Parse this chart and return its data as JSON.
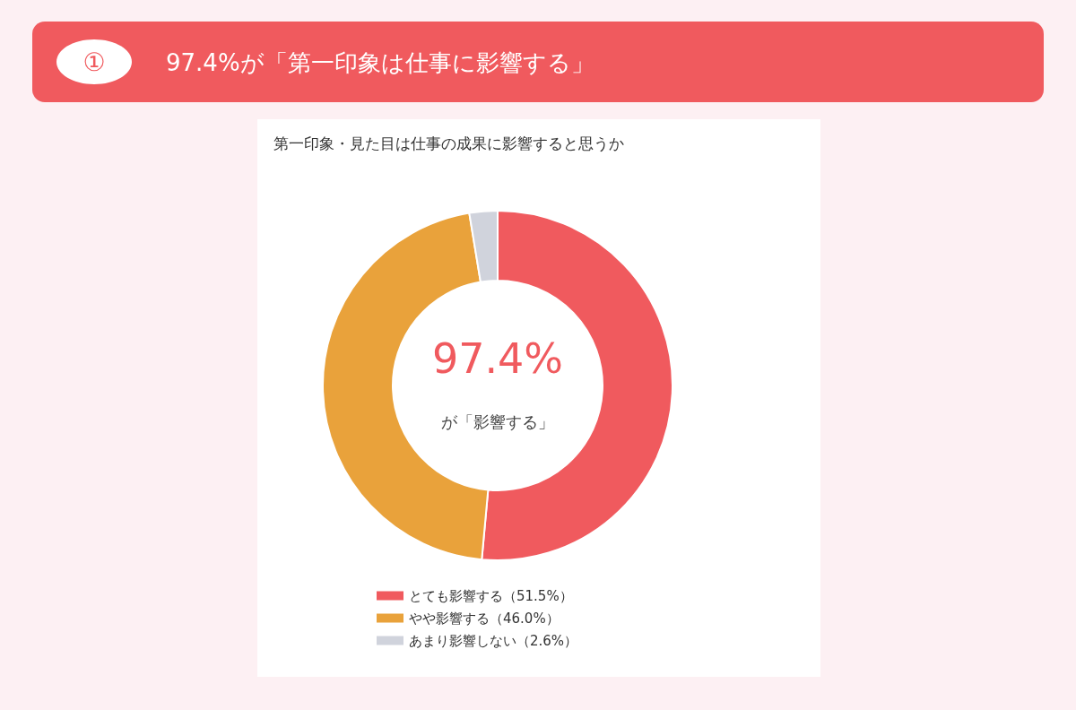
{
  "chart_data": {
    "type": "donut",
    "title": "97.4%が「第一印象は仕事に影響する」",
    "subtitle": "第一印象・見た目は仕事の成果に影響すると思うか",
    "categories": [
      "とても影響する（51.5%）",
      "やや影響する（46.0%）",
      "あまり影響しない（2.6%）"
    ],
    "values": [
      51.5,
      46.0,
      2.6
    ],
    "colors": [
      "#f05a5e",
      "#e9a23b",
      "#d0d3dc"
    ],
    "annotations": [
      "①",
      "97.4%",
      "が「影響する」"
    ],
    "legend": "bottom"
  }
}
